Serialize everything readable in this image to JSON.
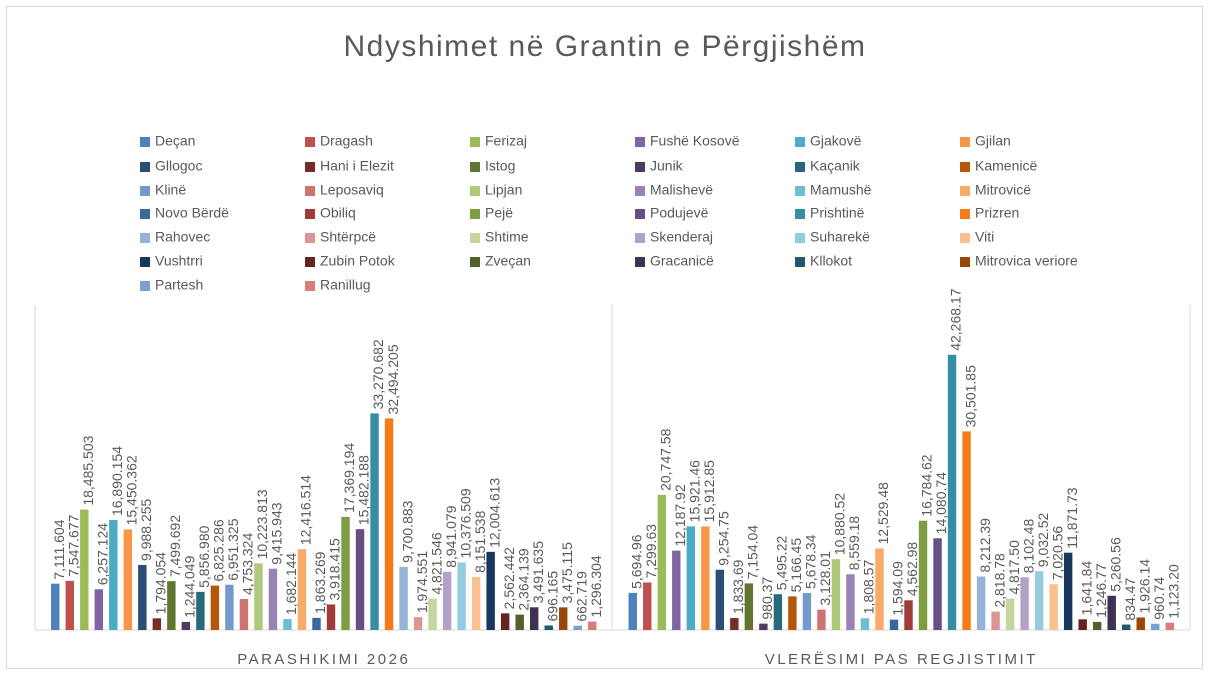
{
  "chart_data": {
    "type": "bar",
    "title": "Ndyshimet në Grantin e Përgjishëm",
    "categories": [
      "PARASHIKIMI 2026",
      "VLERËSIMI PAS REGJISTIMIT"
    ],
    "ylim": [
      0,
      45000
    ],
    "series": [
      {
        "name": "Deçan",
        "color": "#4f81bd",
        "values": [
          7111.604,
          5694.96
        ],
        "value_labels": [
          "7,111.604",
          "5,694.96"
        ]
      },
      {
        "name": "Dragash",
        "color": "#c0504d",
        "values": [
          7547.677,
          7299.63
        ],
        "value_labels": [
          "7,547.677",
          "7,299.63"
        ]
      },
      {
        "name": "Ferizaj",
        "color": "#9bbb59",
        "values": [
          18485.503,
          20747.58
        ],
        "value_labels": [
          "18,485.503",
          "20,747.58"
        ]
      },
      {
        "name": "Fushë Kosovë",
        "color": "#8064a2",
        "values": [
          6257.124,
          12187.92
        ],
        "value_labels": [
          "6,257.124",
          "12,187.92"
        ]
      },
      {
        "name": "Gjakovë",
        "color": "#4bacc6",
        "values": [
          16890.154,
          15921.46
        ],
        "value_labels": [
          "16,890.154",
          "15,921.46"
        ]
      },
      {
        "name": "Gjilan",
        "color": "#f79646",
        "values": [
          15450.362,
          15912.85
        ],
        "value_labels": [
          "15,450.362",
          "15,912.85"
        ]
      },
      {
        "name": "Gllogoc",
        "color": "#2c4d75",
        "values": [
          9988.255,
          9254.75
        ],
        "value_labels": [
          "9,988.255",
          "9,254.75"
        ]
      },
      {
        "name": "Hani i Elezit",
        "color": "#772c2a",
        "values": [
          1794.054,
          1833.69
        ],
        "value_labels": [
          "1,794.054",
          "1,833.69"
        ]
      },
      {
        "name": "Istog",
        "color": "#5f7530",
        "values": [
          7499.692,
          7154.04
        ],
        "value_labels": [
          "7,499.692",
          "7,154.04"
        ]
      },
      {
        "name": "Junik",
        "color": "#4d3b62",
        "values": [
          1244.049,
          980.37
        ],
        "value_labels": [
          "1,244.049",
          "980.37"
        ]
      },
      {
        "name": "Kaçanik",
        "color": "#276a7c",
        "values": [
          5856.98,
          5495.22
        ],
        "value_labels": [
          "5,856.980",
          "5,495.22"
        ]
      },
      {
        "name": "Kamenicë",
        "color": "#b65708",
        "values": [
          6825.286,
          5166.45
        ],
        "value_labels": [
          "6,825.286",
          "5,166.45"
        ]
      },
      {
        "name": "Klinë",
        "color": "#729aca",
        "values": [
          6951.325,
          5678.34
        ],
        "value_labels": [
          "6,951.325",
          "5,678.34"
        ]
      },
      {
        "name": "Leposaviq",
        "color": "#cd7371",
        "values": [
          4753.324,
          3128.01
        ],
        "value_labels": [
          "4,753.324",
          "3,128.01"
        ]
      },
      {
        "name": "Lipjan",
        "color": "#afc97a",
        "values": [
          10223.813,
          10880.52
        ],
        "value_labels": [
          "10,223.813",
          "10,880.52"
        ]
      },
      {
        "name": "Malishevë",
        "color": "#9983b5",
        "values": [
          9415.943,
          8559.18
        ],
        "value_labels": [
          "9,415.943",
          "8,559.18"
        ]
      },
      {
        "name": "Mamushë",
        "color": "#6fbdd1",
        "values": [
          1682.144,
          1808.57
        ],
        "value_labels": [
          "1,682.144",
          "1,808.57"
        ]
      },
      {
        "name": "Mitrovicë",
        "color": "#f9ab6b",
        "values": [
          12416.514,
          12529.48
        ],
        "value_labels": [
          "12,416.514",
          "12,529.48"
        ]
      },
      {
        "name": "Novo Bërdë",
        "color": "#3a679c",
        "values": [
          1863.269,
          1594.09
        ],
        "value_labels": [
          "1,863.269",
          "1,594.09"
        ]
      },
      {
        "name": "Obiliq",
        "color": "#9f3b38",
        "values": [
          3918.415,
          4562.98
        ],
        "value_labels": [
          "3,918.415",
          "4,562.98"
        ]
      },
      {
        "name": "Pejë",
        "color": "#7e9c40",
        "values": [
          17369.194,
          16784.62
        ],
        "value_labels": [
          "17,369.194",
          "16,784.62"
        ]
      },
      {
        "name": "Podujevë",
        "color": "#664f83",
        "values": [
          15482.188,
          14080.74
        ],
        "value_labels": [
          "15,482.188",
          "14,080.74"
        ]
      },
      {
        "name": "Prishtinë",
        "color": "#358ea6",
        "values": [
          33270.682,
          42268.17
        ],
        "value_labels": [
          "33,270.682",
          "42,268.17"
        ]
      },
      {
        "name": "Prizren",
        "color": "#f47b16",
        "values": [
          32494.205,
          30501.85
        ],
        "value_labels": [
          "32,494.205",
          "30,501.85"
        ]
      },
      {
        "name": "Rahovec",
        "color": "#95b3d7",
        "values": [
          9700.883,
          8212.39
        ],
        "value_labels": [
          "9,700.883",
          "8,212.39"
        ]
      },
      {
        "name": "Shtërpcë",
        "color": "#d99694",
        "values": [
          1974.551,
          2818.78
        ],
        "value_labels": [
          "1,974.551",
          "2,818.78"
        ]
      },
      {
        "name": "Shtime",
        "color": "#c3d69b",
        "values": [
          4821.546,
          4817.5
        ],
        "value_labels": [
          "4,821.546",
          "4,817.50"
        ]
      },
      {
        "name": "Skenderaj",
        "color": "#b3a2c7",
        "values": [
          8941.079,
          8102.48
        ],
        "value_labels": [
          "8,941.079",
          "8,102.48"
        ]
      },
      {
        "name": "Suharekë",
        "color": "#93cddd",
        "values": [
          10376.509,
          9032.52
        ],
        "value_labels": [
          "10,376.509",
          "9,032.52"
        ]
      },
      {
        "name": "Viti",
        "color": "#fac090",
        "values": [
          8151.538,
          7020.56
        ],
        "value_labels": [
          "8,151.538",
          "7,020.56"
        ]
      },
      {
        "name": "Vushtrri",
        "color": "#17375e",
        "values": [
          12004.613,
          11871.73
        ],
        "value_labels": [
          "12,004.613",
          "11,871.73"
        ]
      },
      {
        "name": "Zubin Potok",
        "color": "#632423",
        "values": [
          2562.442,
          1641.84
        ],
        "value_labels": [
          "2,562.442",
          "1,641.84"
        ]
      },
      {
        "name": "Zveçan",
        "color": "#4f6228",
        "values": [
          2364.139,
          1246.77
        ],
        "value_labels": [
          "2,364.139",
          "1,246.77"
        ]
      },
      {
        "name": "Gracanicë",
        "color": "#3f3151",
        "values": [
          3491.635,
          5260.56
        ],
        "value_labels": [
          "3,491.635",
          "5,260.56"
        ]
      },
      {
        "name": "Kllokot",
        "color": "#215968",
        "values": [
          696.165,
          834.47
        ],
        "value_labels": [
          "696.165",
          "834.47"
        ]
      },
      {
        "name": "Mitrovica veriore",
        "color": "#984807",
        "values": [
          3475.115,
          1926.14
        ],
        "value_labels": [
          "3,475.115",
          "1,926.14"
        ]
      },
      {
        "name": "Partesh",
        "color": "#7ba0cd",
        "values": [
          662.719,
          960.74
        ],
        "value_labels": [
          "662.719",
          "960.74"
        ]
      },
      {
        "name": "Ranillug",
        "color": "#d57f7d",
        "values": [
          1296.304,
          1123.2
        ],
        "value_labels": [
          "1,296.304",
          "1,123.20"
        ]
      }
    ]
  }
}
